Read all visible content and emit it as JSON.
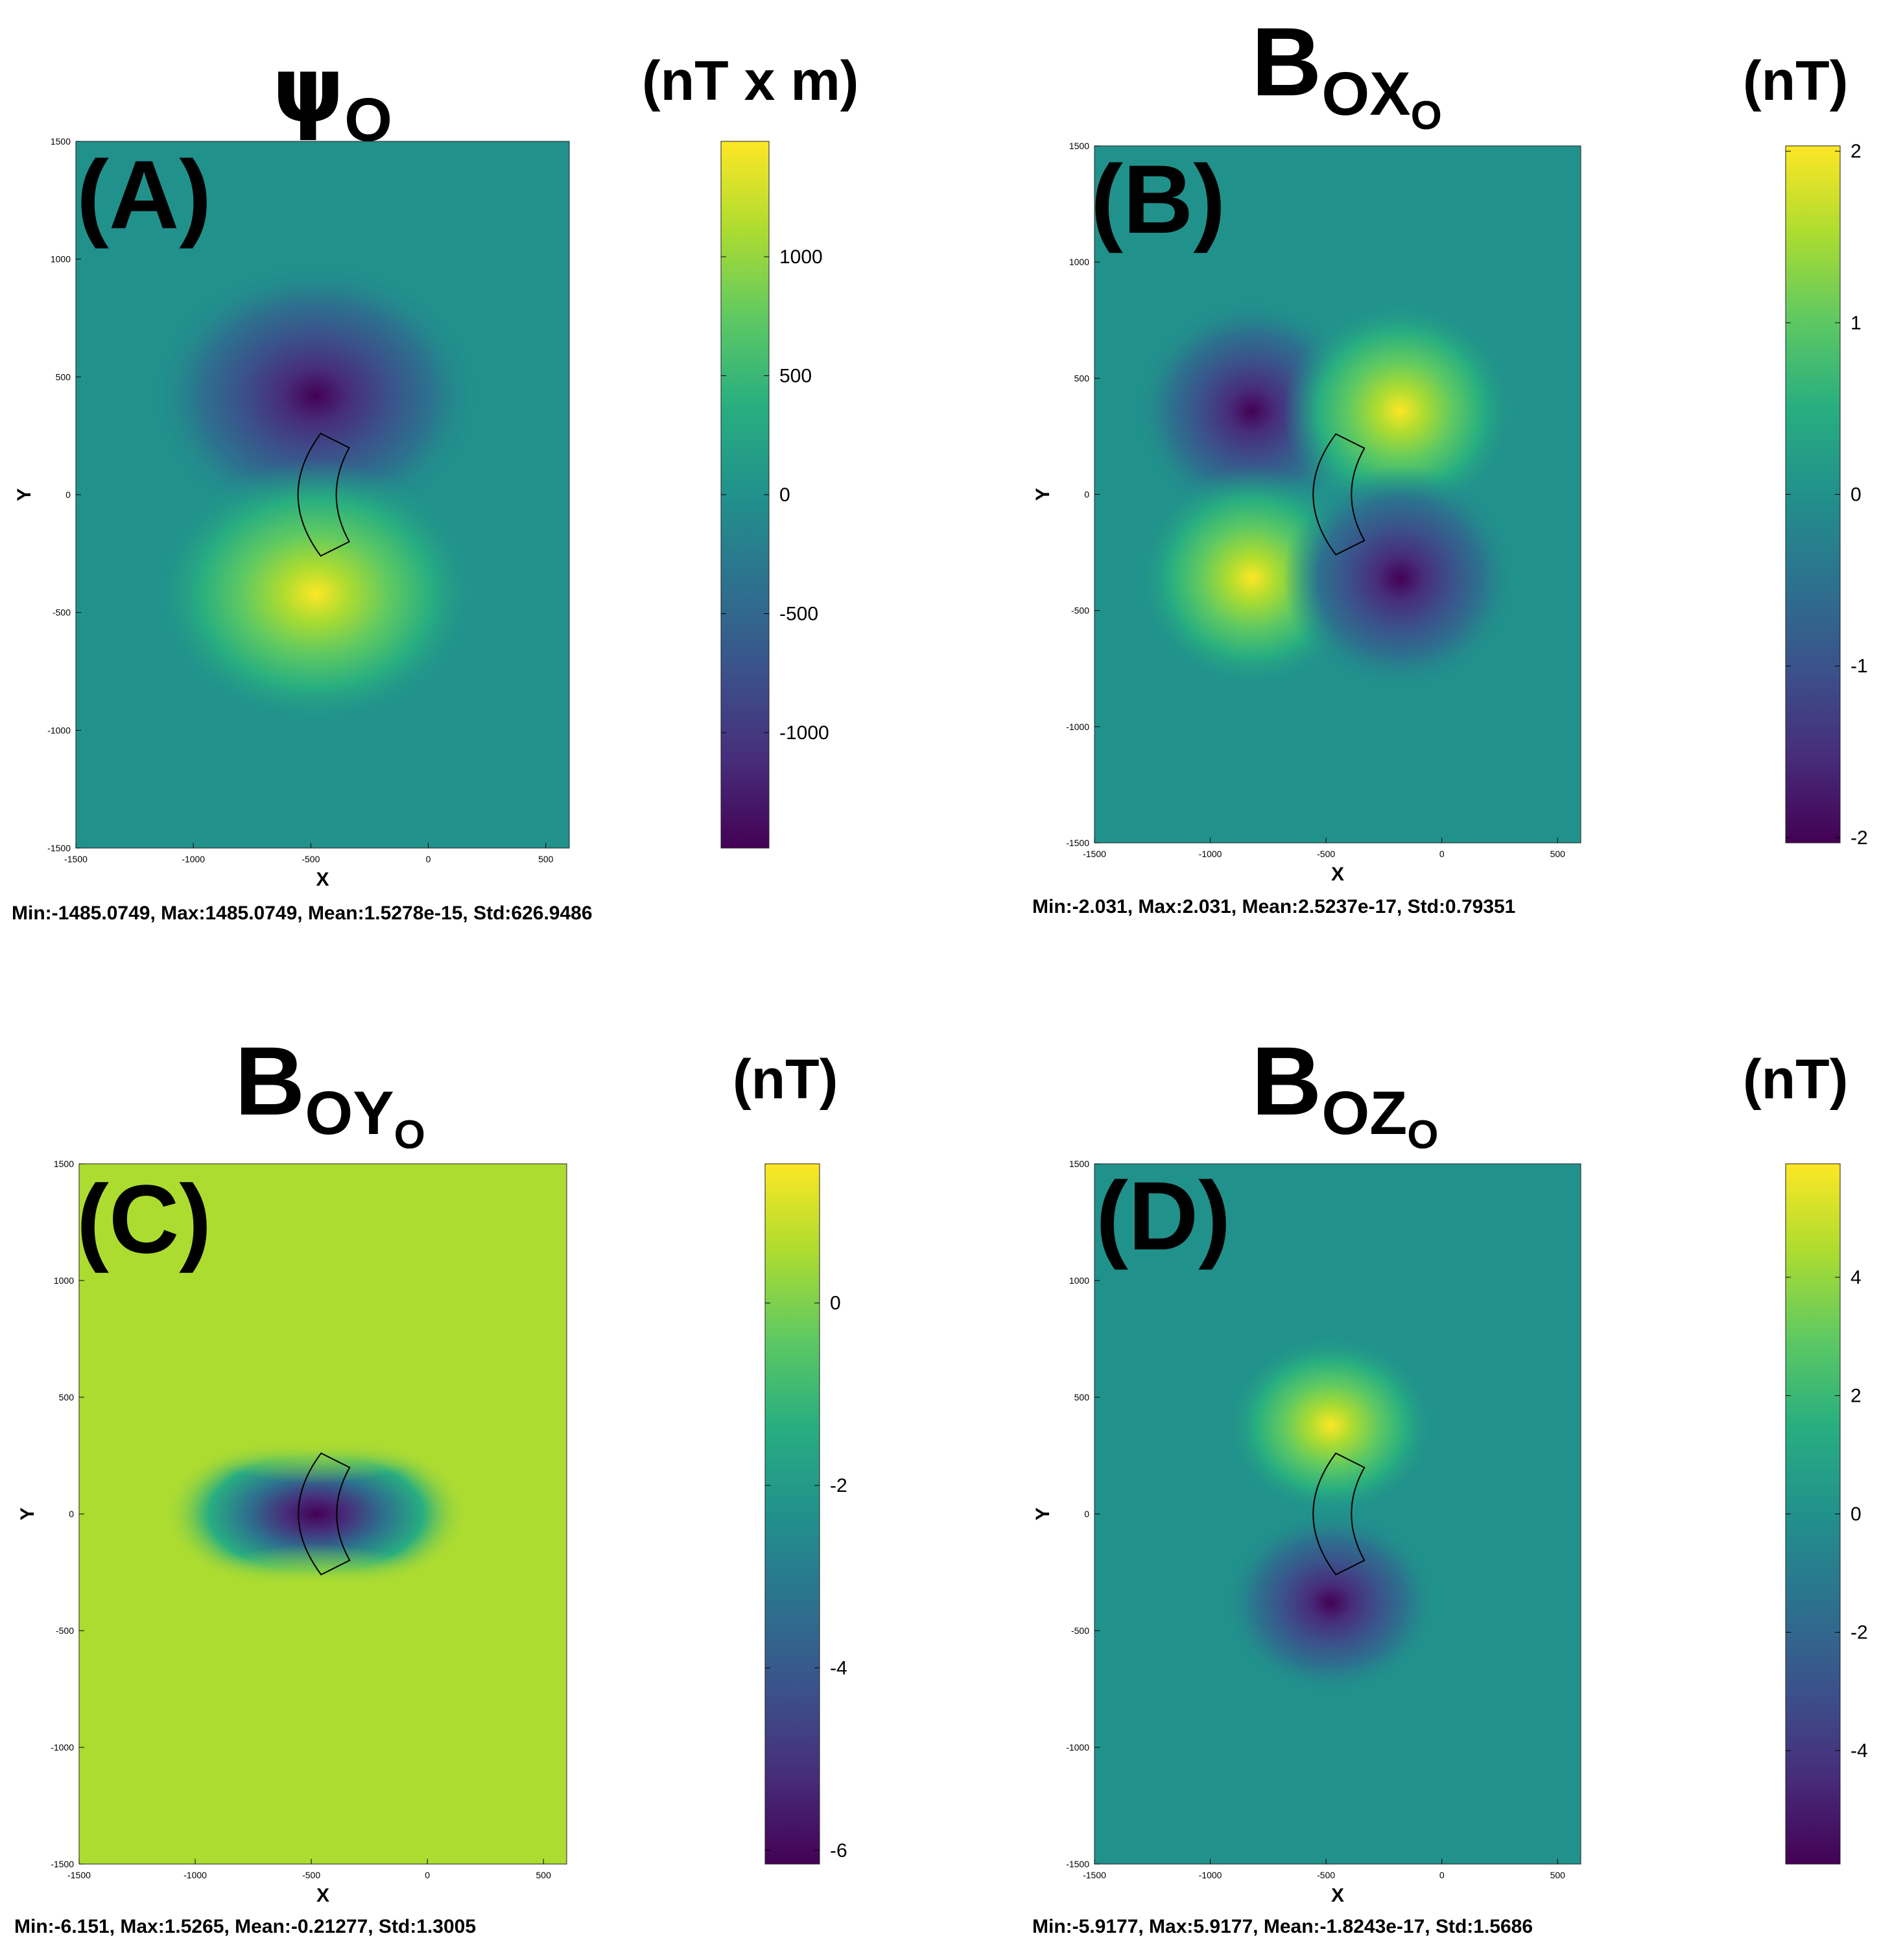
{
  "colormap": [
    "#440154",
    "#472d7b",
    "#3b528b",
    "#2c728e",
    "#21918c",
    "#28ae80",
    "#5ec962",
    "#addc30",
    "#fde725"
  ],
  "chart_data": [
    {
      "type": "heatmap",
      "panel": "(A)",
      "title_main": "ψ",
      "title_sub": "O",
      "title_sub2": "",
      "units": "(nT x m)",
      "xlabel": "X",
      "ylabel": "Y",
      "xlim": [
        -1500,
        600
      ],
      "ylim": [
        -1500,
        1500
      ],
      "xticks": [
        -1500,
        -1000,
        -500,
        0,
        500
      ],
      "yticks": [
        -1500,
        -1000,
        -500,
        0,
        500,
        1000,
        1500
      ],
      "colorbar_range": [
        -1485.0749,
        1485.0749
      ],
      "colorbar_ticks": [
        -1000,
        -500,
        0,
        500,
        1000
      ],
      "sources": [
        {
          "x": -480,
          "y": 420,
          "s": -1,
          "sx": 320,
          "sy": 260
        },
        {
          "x": -480,
          "y": -420,
          "s": 1,
          "sx": 320,
          "sy": 260
        }
      ],
      "stats": "Min:-1485.0749, Max:1485.0749, Mean:1.5278e-15, Std:626.9486"
    },
    {
      "type": "heatmap",
      "panel": "(B)",
      "title_main": "B",
      "title_sub": "O",
      "title_sub2": "X",
      "title_sub3": "O",
      "units": "(nT)",
      "xlabel": "X",
      "ylabel": "Y",
      "xlim": [
        -1500,
        600
      ],
      "ylim": [
        -1500,
        1500
      ],
      "xticks": [
        -1500,
        -1000,
        -500,
        0,
        500
      ],
      "yticks": [
        -1500,
        -1000,
        -500,
        0,
        500,
        1000,
        1500
      ],
      "colorbar_range": [
        -2.031,
        2.031
      ],
      "colorbar_ticks": [
        -2,
        -1,
        0,
        1,
        2
      ],
      "sources": [
        {
          "x": -820,
          "y": 360,
          "s": -1,
          "sx": 230,
          "sy": 220
        },
        {
          "x": -180,
          "y": 360,
          "s": 1,
          "sx": 230,
          "sy": 220
        },
        {
          "x": -820,
          "y": -360,
          "s": 1,
          "sx": 230,
          "sy": 220
        },
        {
          "x": -180,
          "y": -360,
          "s": -1,
          "sx": 230,
          "sy": 220
        }
      ],
      "stats": "Min:-2.031, Max:2.031, Mean:2.5237e-17, Std:0.79351"
    },
    {
      "type": "heatmap",
      "panel": "(C)",
      "title_main": "B",
      "title_sub": "O",
      "title_sub2": "Y",
      "title_sub3": "O",
      "units": "(nT)",
      "xlabel": "X",
      "ylabel": "Y",
      "xlim": [
        -1500,
        600
      ],
      "ylim": [
        -1500,
        1500
      ],
      "xticks": [
        -1500,
        -1000,
        -500,
        0,
        500
      ],
      "yticks": [
        -1500,
        -1000,
        -500,
        0,
        500,
        1000,
        1500
      ],
      "colorbar_range": [
        -6.151,
        1.5265
      ],
      "colorbar_ticks": [
        -6,
        -4,
        -2,
        0
      ],
      "sources": [
        {
          "x": -480,
          "y": 0,
          "s": -1.7,
          "sx": 300,
          "sy": 160
        },
        {
          "x": -480,
          "y": 700,
          "s": 0.55,
          "sx": 380,
          "sy": 260
        },
        {
          "x": -480,
          "y": -700,
          "s": 0.55,
          "sx": 380,
          "sy": 260
        }
      ],
      "stats": "Min:-6.151, Max:1.5265, Mean:-0.21277, Std:1.3005"
    },
    {
      "type": "heatmap",
      "panel": "(D)",
      "title_main": "B",
      "title_sub": "O",
      "title_sub2": "Z",
      "title_sub3": "O",
      "units": "(nT)",
      "xlabel": "X",
      "ylabel": "Y",
      "xlim": [
        -1500,
        600
      ],
      "ylim": [
        -1500,
        1500
      ],
      "xticks": [
        -1500,
        -1000,
        -500,
        0,
        500
      ],
      "yticks": [
        -1500,
        -1000,
        -500,
        0,
        500,
        1000,
        1500
      ],
      "colorbar_range": [
        -5.9177,
        5.9177
      ],
      "colorbar_ticks": [
        -4,
        -2,
        0,
        2,
        4
      ],
      "sources": [
        {
          "x": -480,
          "y": 380,
          "s": 1,
          "sx": 210,
          "sy": 180
        },
        {
          "x": -480,
          "y": -380,
          "s": -1,
          "sx": 210,
          "sy": 180
        }
      ],
      "stats": "Min:-5.9177, Max:5.9177, Mean:-1.8243e-17, Std:1.5686"
    }
  ]
}
